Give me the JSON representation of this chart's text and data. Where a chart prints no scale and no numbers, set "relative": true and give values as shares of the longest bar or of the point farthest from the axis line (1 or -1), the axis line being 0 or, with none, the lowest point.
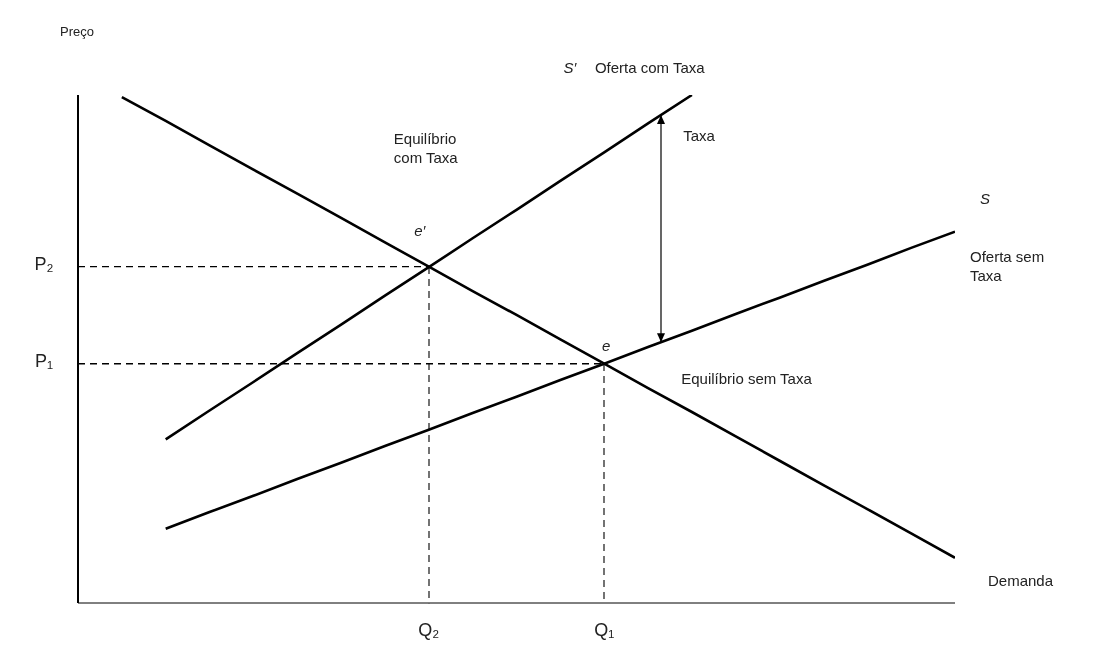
{
  "chart_data": {
    "type": "line",
    "relative": true,
    "ylabel": "Preço",
    "marker": "none",
    "line_style": "solid",
    "categories": [
      null,
      null,
      null,
      null,
      null,
      null,
      null,
      null,
      null,
      null,
      null,
      null,
      null,
      null,
      null,
      null,
      null,
      null,
      null,
      null,
      null
    ],
    "series": [
      {
        "name": "Demanda",
        "color": "#000000",
        "values": [
          null,
          0.996,
          0.949,
          0.901,
          0.853,
          0.806,
          0.758,
          0.71,
          0.662,
          0.614,
          0.567,
          0.519,
          0.471,
          0.423,
          0.376,
          0.328,
          0.28,
          0.232,
          0.185,
          0.137,
          0.089
        ]
      },
      {
        "name": "Oferta com Taxa",
        "color": "#000000",
        "values": [
          null,
          null,
          0.322,
          0.379,
          0.435,
          0.492,
          0.548,
          0.605,
          0.661,
          0.718,
          0.774,
          0.831,
          0.887,
          0.944,
          1.0,
          null,
          null,
          null,
          null,
          null,
          null
        ]
      },
      {
        "name": "Oferta sem Taxa",
        "color": "#000000",
        "values": [
          null,
          null,
          0.146,
          0.179,
          0.211,
          0.244,
          0.276,
          0.309,
          0.341,
          0.374,
          0.406,
          0.439,
          0.471,
          0.504,
          0.536,
          0.569,
          0.601,
          0.634,
          0.666,
          0.699,
          0.731
        ]
      },
      {
        "color": "#000000",
        "line_style": "dashed",
        "values": [
          0.662,
          0.662,
          0.662,
          0.662,
          0.662,
          0.662,
          0.662,
          0.662,
          0.662,
          null,
          null,
          null,
          null,
          null,
          null,
          null,
          null,
          null,
          null,
          null,
          null
        ]
      },
      {
        "color": "#000000",
        "line_style": "dashed",
        "values": [
          0.471,
          0.471,
          0.471,
          0.471,
          0.471,
          0.471,
          0.471,
          0.471,
          0.471,
          0.471,
          0.471,
          0.471,
          0.471,
          null,
          null,
          null,
          null,
          null,
          null,
          null,
          null
        ]
      }
    ],
    "annotations": [
      "S′",
      "S",
      "e′",
      "e",
      "Equilíbrio com Taxa",
      "Taxa",
      "Equilíbrio sem Taxa",
      "P₂",
      "Q₂",
      "P₁",
      "Q₁"
    ]
  }
}
